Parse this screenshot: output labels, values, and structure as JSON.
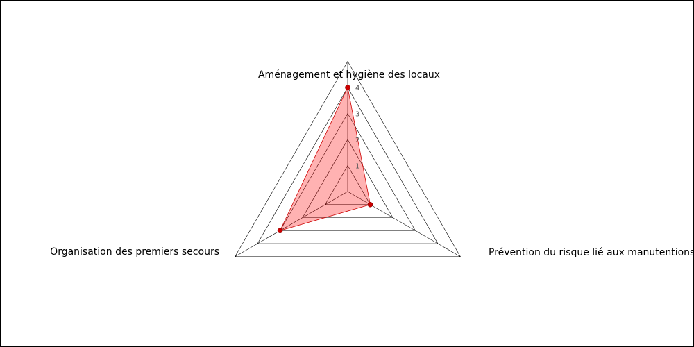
{
  "chart_data": {
    "type": "radar",
    "axes": [
      "Aménagement et hygiène des locaux",
      "Prévention du risque lié aux manutentions manuelles",
      "Organisation des premiers secours"
    ],
    "series": [
      {
        "values": [
          4,
          1,
          3
        ]
      }
    ],
    "r_range": [
      0,
      4
    ],
    "ticks": [
      "1",
      "2",
      "3",
      "4"
    ],
    "grid_levels": [
      1,
      2,
      3,
      4,
      5
    ],
    "colors": {
      "fill": "#ff0000",
      "fill_opacity": 0.3,
      "stroke": "#cc0000",
      "marker": "#cc0000",
      "grid": "#000000",
      "tick_text": "#555555"
    }
  }
}
